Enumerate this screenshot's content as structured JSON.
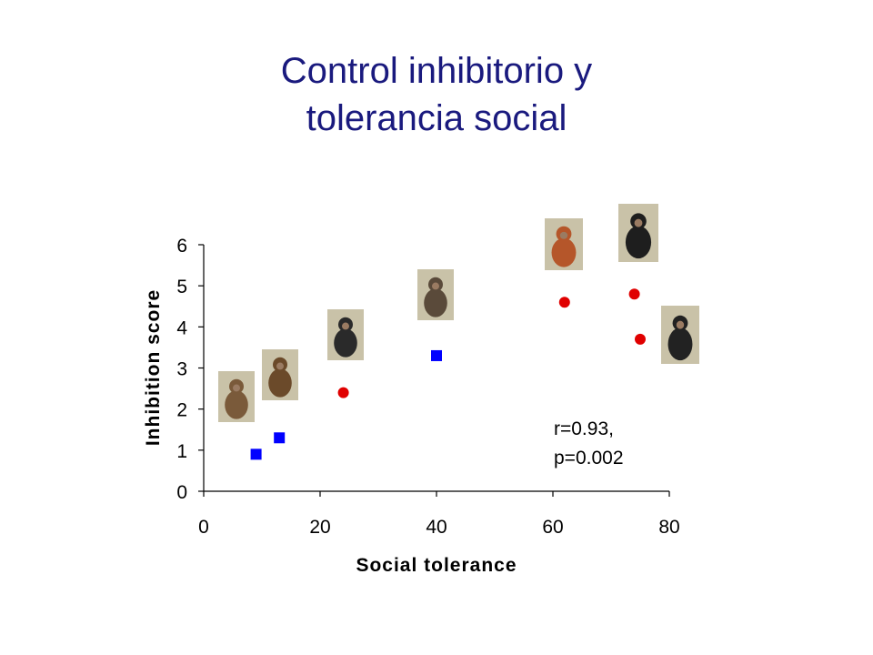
{
  "slide": {
    "title_line1": "Control inhibitorio y",
    "title_line2": "tolerancia social"
  },
  "chart_data": {
    "type": "scatter",
    "xlabel": "Social tolerance",
    "ylabel": "Inhibition score",
    "xlim": [
      0,
      80
    ],
    "ylim": [
      0,
      6
    ],
    "xticks": [
      "0",
      "20",
      "40",
      "60",
      "80"
    ],
    "yticks": [
      "0",
      "1",
      "2",
      "3",
      "4",
      "5",
      "6"
    ],
    "grid": false,
    "series": [
      {
        "marker": "square",
        "color": "#0000ff",
        "points": [
          {
            "x": 9,
            "y": 0.9
          },
          {
            "x": 13,
            "y": 1.3
          },
          {
            "x": 40,
            "y": 3.3
          }
        ]
      },
      {
        "marker": "circle",
        "color": "#e00000",
        "points": [
          {
            "x": 24,
            "y": 2.4
          },
          {
            "x": 62,
            "y": 4.6
          },
          {
            "x": 74,
            "y": 4.8
          },
          {
            "x": 75,
            "y": 3.7
          }
        ]
      }
    ],
    "annotation_line1": "r=0.93,",
    "annotation_line2": "p=0.002",
    "primate_photos": [
      {
        "name": "macaque-photo",
        "color": "#7a5a3a"
      },
      {
        "name": "capuchin-photo",
        "color": "#6b4a2a"
      },
      {
        "name": "gorilla-photo",
        "color": "#2a2a2a"
      },
      {
        "name": "spider-monkey-photo",
        "color": "#5a4a3a"
      },
      {
        "name": "orangutan-photo",
        "color": "#b5562a"
      },
      {
        "name": "chimpanzee-photo",
        "color": "#1e1e1e"
      },
      {
        "name": "bonobo-photo",
        "color": "#222222"
      }
    ]
  }
}
